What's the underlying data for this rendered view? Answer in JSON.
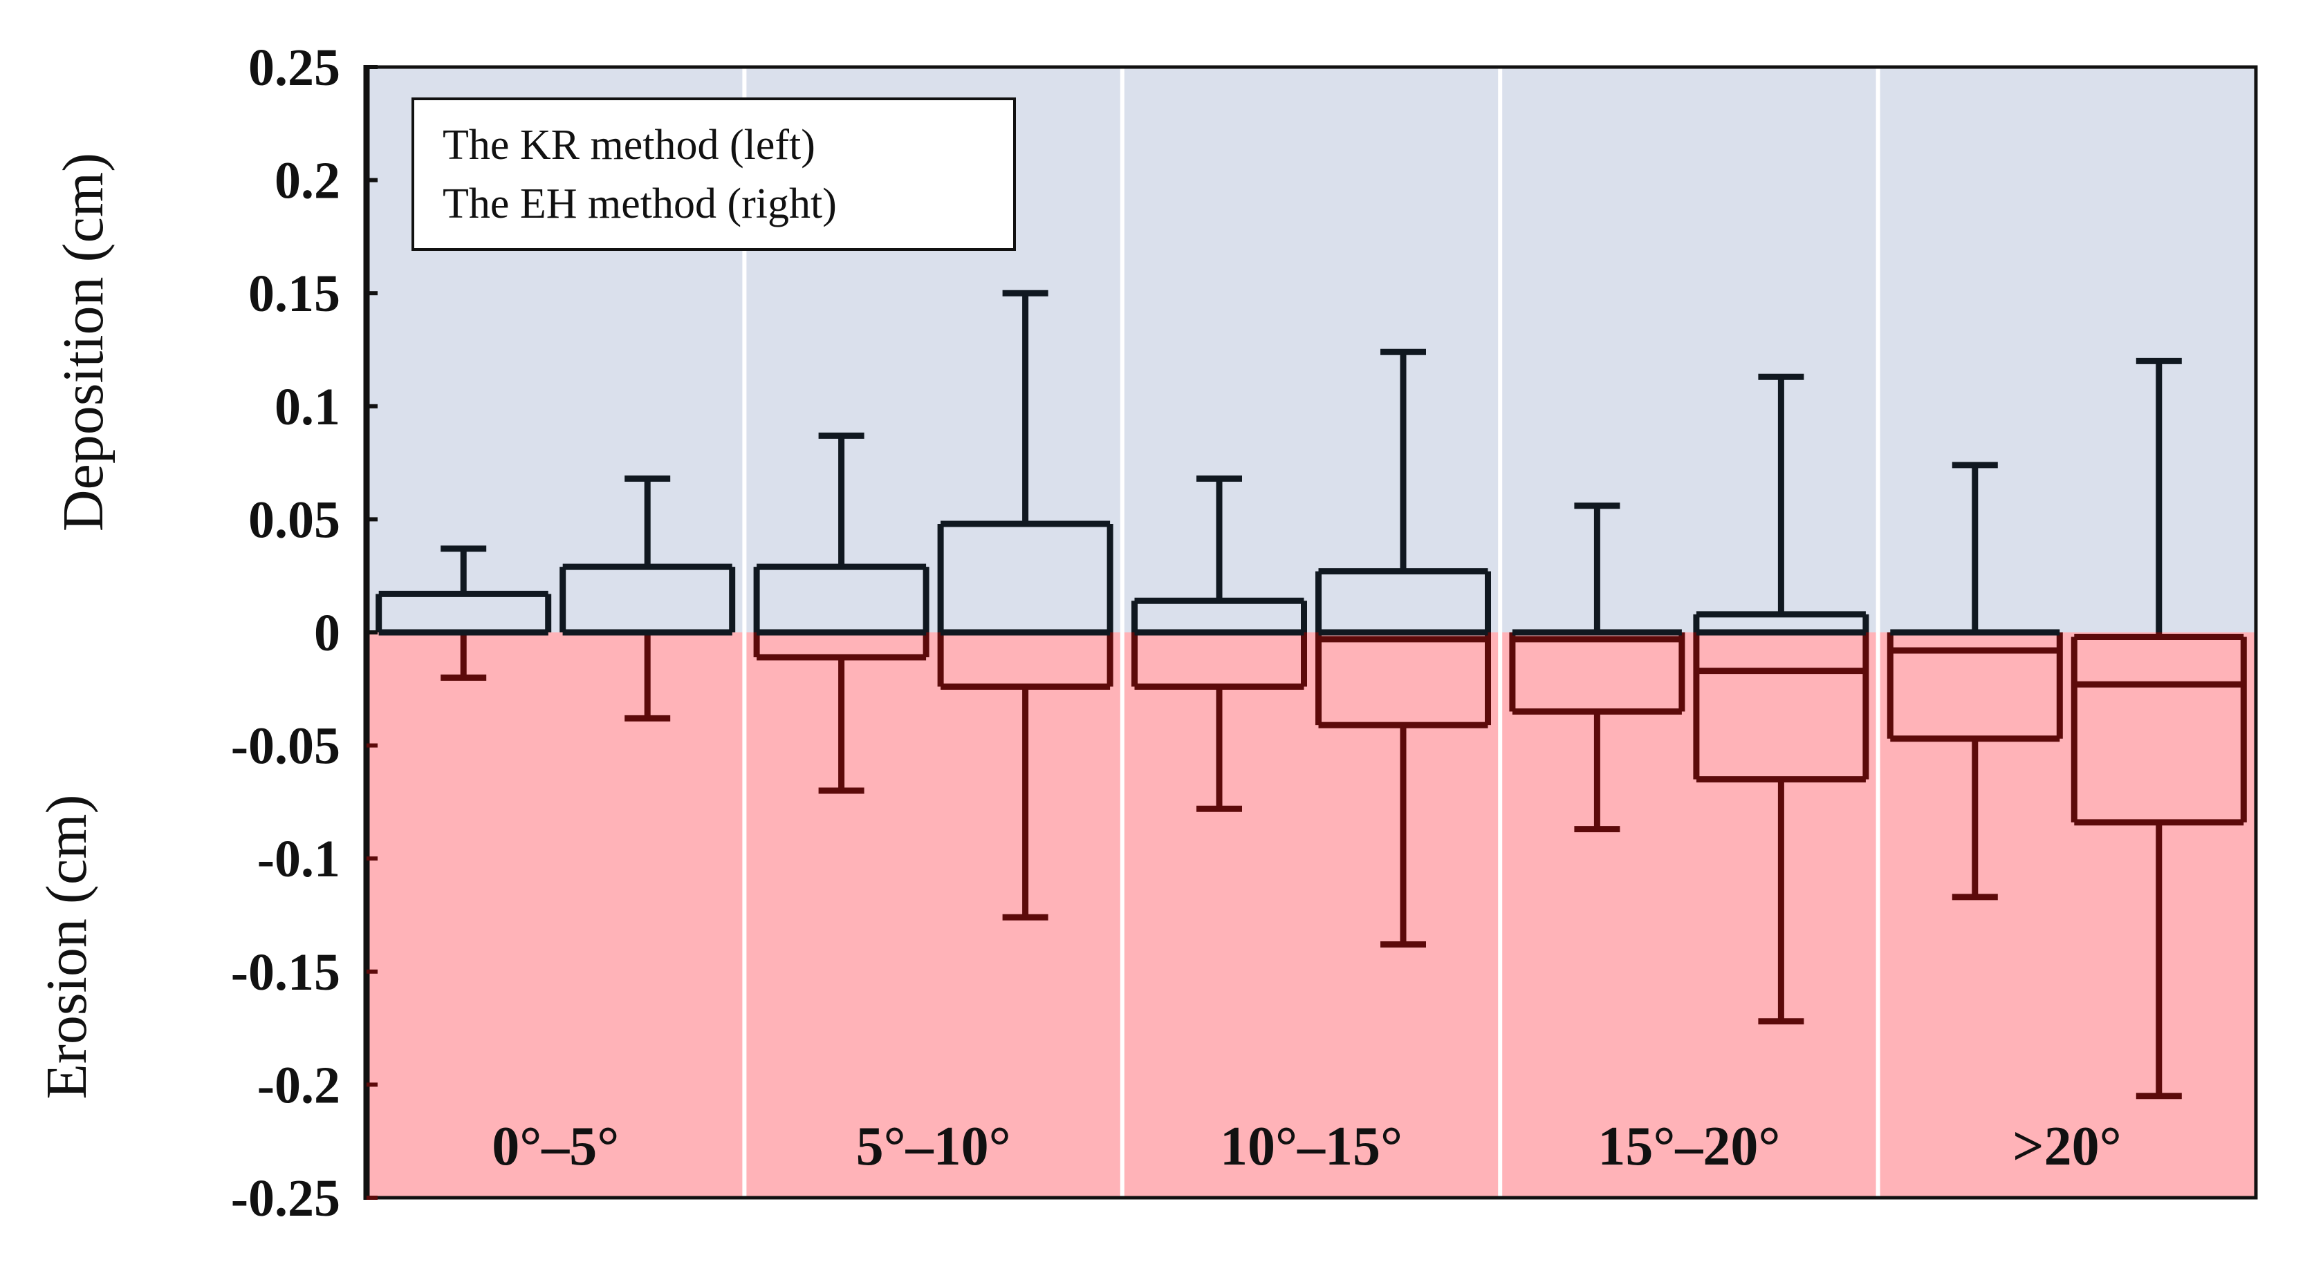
{
  "chart_data": {
    "type": "boxplot",
    "title": "",
    "xlabel": "",
    "ylabel_top": "Deposition (cm)",
    "ylabel_bottom": "Erosion (cm)",
    "ylim": [
      -0.25,
      0.25
    ],
    "yticks": [
      0.25,
      0.2,
      0.15,
      0.1,
      0.05,
      0,
      -0.05,
      -0.1,
      -0.15,
      -0.2,
      -0.25
    ],
    "ytick_labels": [
      "0.25",
      "0.2",
      "0.15",
      "0.1",
      "0.05",
      "0",
      "-0.05",
      "-0.1",
      "-0.15",
      "-0.2",
      "-0.25"
    ],
    "regions": {
      "deposition_color": "#dae0ec",
      "erosion_color": "#ffb3b8"
    },
    "legend": {
      "placement": "top-left",
      "entries": [
        "The KR method (left)",
        "The EH method (right)"
      ]
    },
    "colors": {
      "positive_stroke": "#101820",
      "negative_stroke": "#5c0a0a",
      "separator": "#ffffff",
      "frame": "#111111"
    },
    "categories": [
      "0°–5°",
      "5°–10°",
      "10°–15°",
      "15°–20°",
      ">20°"
    ],
    "series": [
      {
        "name": "The KR method (left)",
        "boxes": [
          {
            "whisker_low": -0.02,
            "q1": 0.0,
            "median": 0.0,
            "q3": 0.017,
            "whisker_high": 0.037
          },
          {
            "whisker_low": -0.07,
            "q1": -0.011,
            "median": 0.0,
            "q3": 0.029,
            "whisker_high": 0.087
          },
          {
            "whisker_low": -0.078,
            "q1": -0.024,
            "median": 0.0,
            "q3": 0.014,
            "whisker_high": 0.068
          },
          {
            "whisker_low": -0.087,
            "q1": -0.035,
            "median": -0.003,
            "q3": 0.0,
            "whisker_high": 0.056
          },
          {
            "whisker_low": -0.117,
            "q1": -0.047,
            "median": -0.008,
            "q3": 0.0,
            "whisker_high": 0.074
          }
        ]
      },
      {
        "name": "The EH method (right)",
        "boxes": [
          {
            "whisker_low": -0.038,
            "q1": 0.0,
            "median": 0.0,
            "q3": 0.029,
            "whisker_high": 0.068
          },
          {
            "whisker_low": -0.126,
            "q1": -0.024,
            "median": 0.0,
            "q3": 0.048,
            "whisker_high": 0.15
          },
          {
            "whisker_low": -0.138,
            "q1": -0.041,
            "median": -0.003,
            "q3": 0.027,
            "whisker_high": 0.124
          },
          {
            "whisker_low": -0.172,
            "q1": -0.065,
            "median": -0.017,
            "q3": 0.008,
            "whisker_high": 0.113
          },
          {
            "whisker_low": -0.205,
            "q1": -0.084,
            "median": -0.023,
            "q3": -0.002,
            "whisker_high": 0.12
          }
        ]
      }
    ]
  }
}
